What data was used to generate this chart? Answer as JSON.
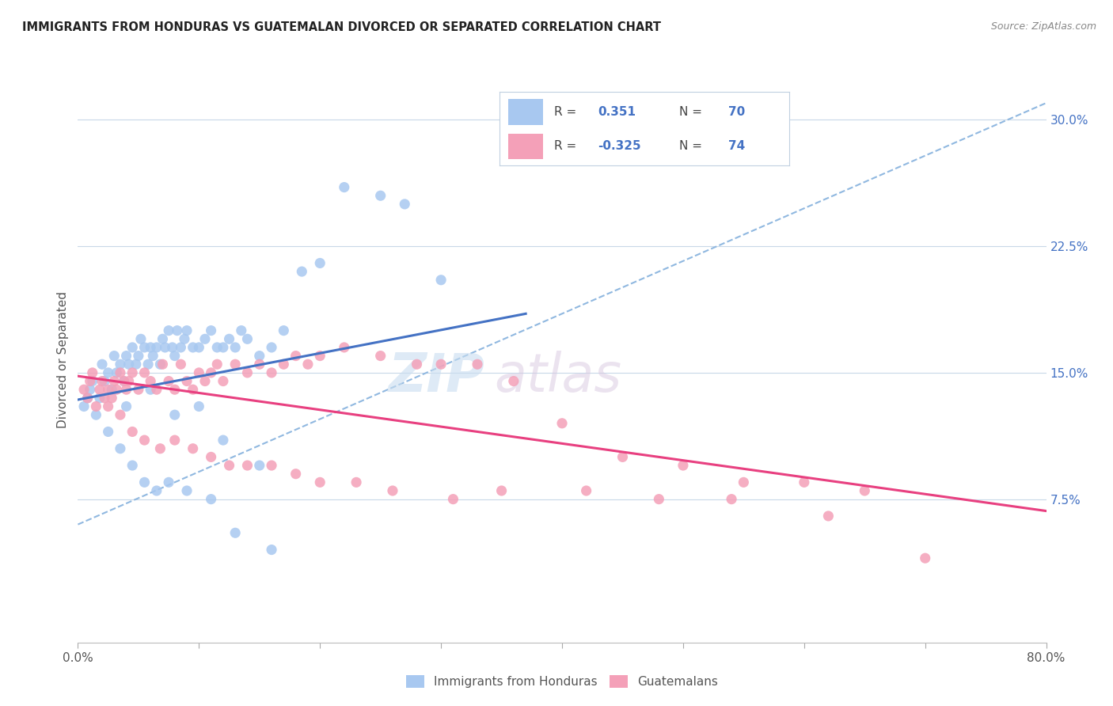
{
  "title": "IMMIGRANTS FROM HONDURAS VS GUATEMALAN DIVORCED OR SEPARATED CORRELATION CHART",
  "source": "Source: ZipAtlas.com",
  "ylabel": "Divorced or Separated",
  "right_yticks": [
    0.075,
    0.15,
    0.225,
    0.3
  ],
  "right_yticklabels": [
    "7.5%",
    "15.0%",
    "22.5%",
    "30.0%"
  ],
  "bottom_xticks": [
    0.0,
    0.1,
    0.2,
    0.3,
    0.4,
    0.5,
    0.6,
    0.7,
    0.8
  ],
  "xlim": [
    0.0,
    0.8
  ],
  "ylim": [
    -0.01,
    0.325
  ],
  "blue_color": "#a8c8f0",
  "pink_color": "#f4a0b8",
  "blue_line_color": "#4472c4",
  "pink_line_color": "#e84080",
  "dashed_line_color": "#90b8e0",
  "watermark_zip": "ZIP",
  "watermark_atlas": "atlas",
  "blue_scatter_x": [
    0.005,
    0.008,
    0.01,
    0.012,
    0.015,
    0.018,
    0.02,
    0.022,
    0.025,
    0.028,
    0.03,
    0.032,
    0.035,
    0.038,
    0.04,
    0.042,
    0.045,
    0.048,
    0.05,
    0.052,
    0.055,
    0.058,
    0.06,
    0.062,
    0.065,
    0.068,
    0.07,
    0.072,
    0.075,
    0.078,
    0.08,
    0.082,
    0.085,
    0.088,
    0.09,
    0.095,
    0.1,
    0.105,
    0.11,
    0.115,
    0.12,
    0.125,
    0.13,
    0.135,
    0.14,
    0.15,
    0.16,
    0.17,
    0.185,
    0.2,
    0.22,
    0.25,
    0.27,
    0.3,
    0.04,
    0.06,
    0.08,
    0.1,
    0.12,
    0.15,
    0.025,
    0.035,
    0.045,
    0.055,
    0.065,
    0.075,
    0.09,
    0.11,
    0.13,
    0.16
  ],
  "blue_scatter_y": [
    0.13,
    0.135,
    0.14,
    0.145,
    0.125,
    0.135,
    0.155,
    0.145,
    0.15,
    0.14,
    0.16,
    0.15,
    0.155,
    0.145,
    0.16,
    0.155,
    0.165,
    0.155,
    0.16,
    0.17,
    0.165,
    0.155,
    0.165,
    0.16,
    0.165,
    0.155,
    0.17,
    0.165,
    0.175,
    0.165,
    0.16,
    0.175,
    0.165,
    0.17,
    0.175,
    0.165,
    0.165,
    0.17,
    0.175,
    0.165,
    0.165,
    0.17,
    0.165,
    0.175,
    0.17,
    0.16,
    0.165,
    0.175,
    0.21,
    0.215,
    0.26,
    0.255,
    0.25,
    0.205,
    0.13,
    0.14,
    0.125,
    0.13,
    0.11,
    0.095,
    0.115,
    0.105,
    0.095,
    0.085,
    0.08,
    0.085,
    0.08,
    0.075,
    0.055,
    0.045
  ],
  "pink_scatter_x": [
    0.005,
    0.008,
    0.01,
    0.012,
    0.015,
    0.018,
    0.02,
    0.022,
    0.025,
    0.028,
    0.03,
    0.032,
    0.035,
    0.038,
    0.04,
    0.042,
    0.045,
    0.05,
    0.055,
    0.06,
    0.065,
    0.07,
    0.075,
    0.08,
    0.085,
    0.09,
    0.095,
    0.1,
    0.105,
    0.11,
    0.115,
    0.12,
    0.13,
    0.14,
    0.15,
    0.16,
    0.17,
    0.18,
    0.19,
    0.2,
    0.22,
    0.25,
    0.28,
    0.3,
    0.33,
    0.36,
    0.4,
    0.45,
    0.5,
    0.55,
    0.6,
    0.65,
    0.7,
    0.025,
    0.035,
    0.045,
    0.055,
    0.068,
    0.08,
    0.095,
    0.11,
    0.125,
    0.14,
    0.16,
    0.18,
    0.2,
    0.23,
    0.26,
    0.31,
    0.35,
    0.42,
    0.48,
    0.54,
    0.62
  ],
  "pink_scatter_y": [
    0.14,
    0.135,
    0.145,
    0.15,
    0.13,
    0.14,
    0.145,
    0.135,
    0.14,
    0.135,
    0.145,
    0.14,
    0.15,
    0.145,
    0.14,
    0.145,
    0.15,
    0.14,
    0.15,
    0.145,
    0.14,
    0.155,
    0.145,
    0.14,
    0.155,
    0.145,
    0.14,
    0.15,
    0.145,
    0.15,
    0.155,
    0.145,
    0.155,
    0.15,
    0.155,
    0.15,
    0.155,
    0.16,
    0.155,
    0.16,
    0.165,
    0.16,
    0.155,
    0.155,
    0.155,
    0.145,
    0.12,
    0.1,
    0.095,
    0.085,
    0.085,
    0.08,
    0.04,
    0.13,
    0.125,
    0.115,
    0.11,
    0.105,
    0.11,
    0.105,
    0.1,
    0.095,
    0.095,
    0.095,
    0.09,
    0.085,
    0.085,
    0.08,
    0.075,
    0.08,
    0.08,
    0.075,
    0.075,
    0.065
  ],
  "blue_trend_x": [
    0.0,
    0.37
  ],
  "blue_trend_y": [
    0.134,
    0.185
  ],
  "pink_trend_x": [
    0.0,
    0.8
  ],
  "pink_trend_y": [
    0.148,
    0.068
  ],
  "dashed_trend_x": [
    0.0,
    0.8
  ],
  "dashed_trend_y": [
    0.06,
    0.31
  ],
  "legend_r1": "R =",
  "legend_v1": "0.351",
  "legend_n1": "N =",
  "legend_nv1": "70",
  "legend_r2": "R =",
  "legend_v2": "-0.325",
  "legend_n2": "N =",
  "legend_nv2": "74",
  "text_black": "#444444",
  "text_blue": "#4472c4",
  "bottom_label1": "Immigrants from Honduras",
  "bottom_label2": "Guatemalans"
}
